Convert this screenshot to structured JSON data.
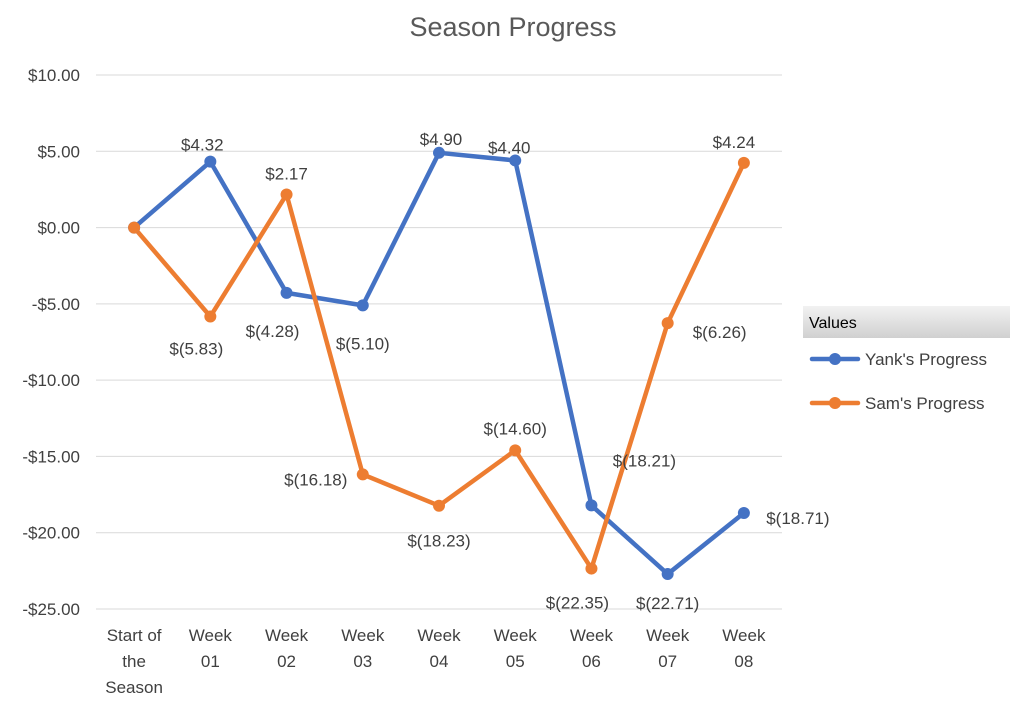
{
  "chart_data": {
    "type": "line",
    "title": "Season Progress",
    "categories": [
      [
        "Start of",
        "the",
        "Season"
      ],
      [
        "Week",
        "01"
      ],
      [
        "Week",
        "02"
      ],
      [
        "Week",
        "03"
      ],
      [
        "Week",
        "04"
      ],
      [
        "Week",
        "05"
      ],
      [
        "Week",
        "06"
      ],
      [
        "Week",
        "07"
      ],
      [
        "Week",
        "08"
      ]
    ],
    "yticks": [
      10,
      5,
      0,
      -5,
      -10,
      -15,
      -20,
      -25
    ],
    "ytick_labels": [
      "$10.00",
      "$5.00",
      "$0.00",
      "-$5.00",
      "-$10.00",
      "-$15.00",
      "-$20.00",
      "-$25.00"
    ],
    "ylim": [
      -25,
      10
    ],
    "grid": true,
    "legend": {
      "title": "Values",
      "placement": "right"
    },
    "series": [
      {
        "name": "Yank's Progress",
        "color": "#4472c4",
        "values": [
          0,
          4.32,
          -4.28,
          -5.1,
          4.9,
          4.4,
          -18.21,
          -22.71,
          -18.71
        ],
        "labels": [
          null,
          "$4.32",
          "$(4.28)",
          "$(5.10)",
          "$4.90",
          "$4.40",
          "$(18.21)",
          "$(22.71)",
          "$(18.71)"
        ]
      },
      {
        "name": "Sam's Progress",
        "color": "#ed7d31",
        "values": [
          0,
          -5.83,
          2.17,
          -16.18,
          -18.23,
          -14.6,
          -22.35,
          -6.26,
          4.24
        ],
        "labels": [
          null,
          "$(5.83)",
          "$2.17",
          "$(16.18)",
          "$(18.23)",
          "$(14.60)",
          "$(22.35)",
          "$(6.26)",
          "$4.24"
        ]
      }
    ]
  }
}
